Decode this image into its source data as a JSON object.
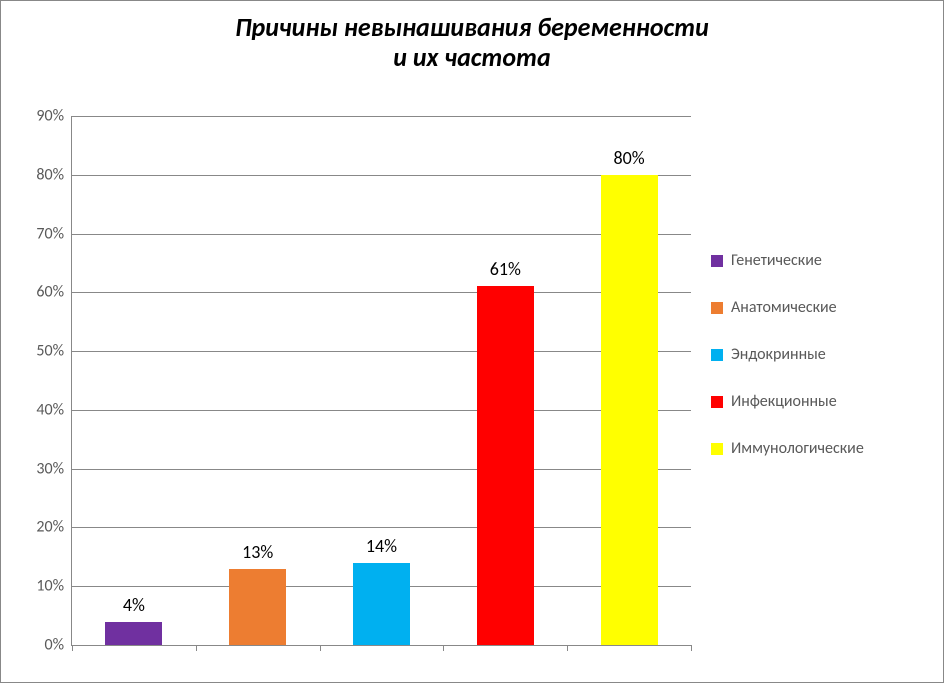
{
  "chart": {
    "type": "bar",
    "title_line1": "Причины невынашивания беременности",
    "title_line2": "и их частота",
    "title_fontsize": 26,
    "title_color": "#000000",
    "background_color": "#ffffff",
    "border_color": "#888888",
    "gridline_color": "#888888",
    "axis_label_color": "#595959",
    "axis_tick_fontsize": 16,
    "bar_label_fontsize": 18,
    "legend_fontsize": 16,
    "ylim": [
      0,
      90
    ],
    "ytick_step": 10,
    "yticks": [
      {
        "value": 0,
        "label": "0%"
      },
      {
        "value": 10,
        "label": "10%"
      },
      {
        "value": 20,
        "label": "20%"
      },
      {
        "value": 30,
        "label": "30%"
      },
      {
        "value": 40,
        "label": "40%"
      },
      {
        "value": 50,
        "label": "50%"
      },
      {
        "value": 60,
        "label": "60%"
      },
      {
        "value": 70,
        "label": "70%"
      },
      {
        "value": 80,
        "label": "80%"
      },
      {
        "value": 90,
        "label": "90%"
      }
    ],
    "series": [
      {
        "name": "Генетические",
        "value": 4,
        "label": "4%",
        "color": "#7030a0"
      },
      {
        "name": "Анатомические",
        "value": 13,
        "label": "13%",
        "color": "#ed7d31"
      },
      {
        "name": "Эндокринные",
        "value": 14,
        "label": "14%",
        "color": "#00b0f0"
      },
      {
        "name": "Инфекционные",
        "value": 61,
        "label": "61%",
        "color": "#ff0000"
      },
      {
        "name": "Иммунологические",
        "value": 80,
        "label": "80%",
        "color": "#ffff00"
      }
    ],
    "bar_width_pct": 9.2,
    "slot_width_pct": 20
  }
}
